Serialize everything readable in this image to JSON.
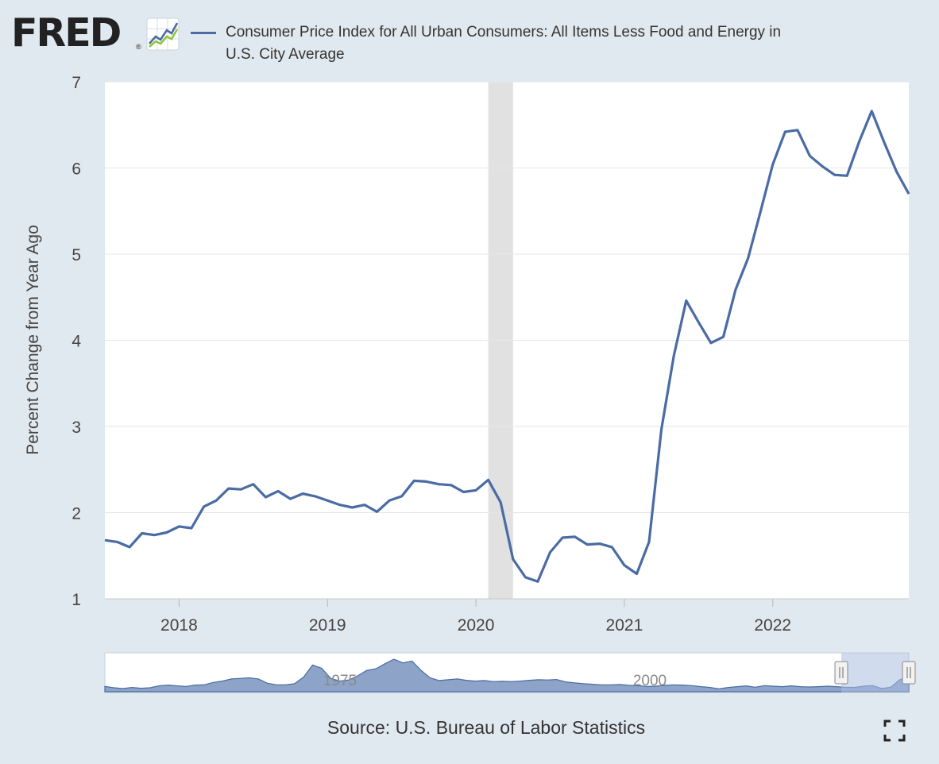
{
  "brand": {
    "logo_text": "FRED"
  },
  "legend": {
    "label": "Consumer Price Index for All Urban Consumers: All Items Less Food and Energy in U.S. City Average",
    "color": "#4a6ba4"
  },
  "source": "Source: U.S. Bureau of Labor Statistics",
  "icons": {
    "fullscreen": "fullscreen-icon",
    "graph": "fred-graph-icon"
  },
  "colors": {
    "background": "#e1e9f0",
    "plot_background": "#ffffff",
    "line": "#4a6ba4",
    "recession": "#e1e1e1",
    "navigator_fill": "#8da3c7"
  },
  "chart_data": {
    "type": "line",
    "xlabel": "",
    "ylabel": "Percent Change from Year Ago",
    "ylim": [
      1,
      7
    ],
    "xlim": [
      "2017-07",
      "2022-12"
    ],
    "yticks": [
      "1",
      "2",
      "3",
      "4",
      "5",
      "6",
      "7"
    ],
    "xticks": [
      "2018",
      "2019",
      "2020",
      "2021",
      "2022"
    ],
    "grid": true,
    "recession_shading": [
      "2020-02",
      "2020-04"
    ],
    "series": [
      {
        "name": "Consumer Price Index for All Urban Consumers: All Items Less Food and Energy in U.S. City Average",
        "x": [
          "2017-07",
          "2017-08",
          "2017-09",
          "2017-10",
          "2017-11",
          "2017-12",
          "2018-01",
          "2018-02",
          "2018-03",
          "2018-04",
          "2018-05",
          "2018-06",
          "2018-07",
          "2018-08",
          "2018-09",
          "2018-10",
          "2018-11",
          "2018-12",
          "2019-01",
          "2019-02",
          "2019-03",
          "2019-04",
          "2019-05",
          "2019-06",
          "2019-07",
          "2019-08",
          "2019-09",
          "2019-10",
          "2019-11",
          "2019-12",
          "2020-01",
          "2020-02",
          "2020-03",
          "2020-04",
          "2020-05",
          "2020-06",
          "2020-07",
          "2020-08",
          "2020-09",
          "2020-10",
          "2020-11",
          "2020-12",
          "2021-01",
          "2021-02",
          "2021-03",
          "2021-04",
          "2021-05",
          "2021-06",
          "2021-07",
          "2021-08",
          "2021-09",
          "2021-10",
          "2021-11",
          "2021-12",
          "2022-01",
          "2022-02",
          "2022-03",
          "2022-04",
          "2022-05",
          "2022-06",
          "2022-07",
          "2022-08",
          "2022-09",
          "2022-10",
          "2022-11",
          "2022-12"
        ],
        "values": [
          1.68,
          1.66,
          1.6,
          1.76,
          1.74,
          1.77,
          1.84,
          1.82,
          2.07,
          2.14,
          2.28,
          2.27,
          2.33,
          2.18,
          2.25,
          2.16,
          2.22,
          2.19,
          2.14,
          2.09,
          2.06,
          2.09,
          2.01,
          2.14,
          2.19,
          2.37,
          2.36,
          2.33,
          2.32,
          2.24,
          2.26,
          2.38,
          2.12,
          1.46,
          1.25,
          1.2,
          1.54,
          1.71,
          1.72,
          1.63,
          1.64,
          1.6,
          1.39,
          1.29,
          1.66,
          2.97,
          3.82,
          4.46,
          4.21,
          3.97,
          4.04,
          4.59,
          4.95,
          5.49,
          6.04,
          6.42,
          6.44,
          6.14,
          6.02,
          5.92,
          5.91,
          6.31,
          6.66,
          6.3,
          5.96,
          5.7
        ]
      }
    ],
    "navigator": {
      "labels": [
        "1975",
        "2000"
      ],
      "values": [
        2.0,
        1.5,
        1.2,
        1.6,
        1.3,
        1.5,
        2.2,
        2.5,
        2.2,
        2.0,
        2.5,
        2.6,
        3.5,
        4.0,
        4.8,
        5.0,
        5.2,
        4.8,
        3.2,
        2.6,
        2.6,
        3.0,
        5.5,
        10.0,
        8.8,
        5.0,
        4.0,
        4.4,
        6.0,
        8.0,
        8.6,
        10.5,
        12.2,
        10.8,
        11.5,
        8.0,
        5.2,
        4.2,
        4.5,
        4.8,
        4.3,
        4.0,
        4.2,
        3.8,
        3.9,
        3.8,
        4.0,
        4.3,
        4.5,
        4.4,
        4.6,
        3.7,
        3.3,
        3.0,
        2.8,
        2.6,
        2.6,
        2.7,
        2.4,
        2.3,
        2.0,
        2.1,
        2.4,
        2.6,
        2.5,
        2.3,
        1.9,
        1.6,
        1.1,
        1.6,
        1.9,
        2.2,
        1.7,
        2.3,
        2.1,
        1.9,
        2.2,
        1.9,
        1.8,
        1.9,
        2.1,
        1.9,
        1.7,
        1.6,
        2.1,
        2.3,
        1.2,
        1.7,
        4.5,
        5.7
      ]
    }
  }
}
